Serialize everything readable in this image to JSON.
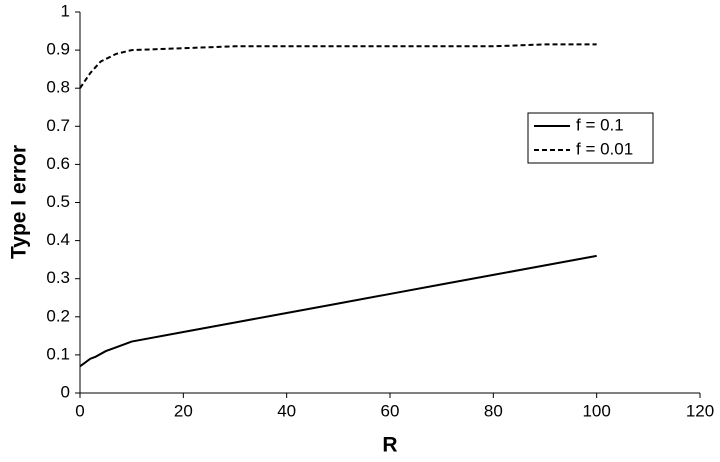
{
  "chart_data": {
    "type": "line",
    "x_label": "R",
    "y_label": "Type I error",
    "xlim": [
      0,
      120
    ],
    "xticks": [
      0,
      20,
      40,
      60,
      80,
      100,
      120
    ],
    "ylim": [
      0,
      1
    ],
    "yticks": [
      0,
      0.1,
      0.2,
      0.3,
      0.4,
      0.5,
      0.6,
      0.7,
      0.8,
      0.9,
      1
    ],
    "grid": false,
    "legend": "right",
    "series": [
      {
        "name": "f = 0.1",
        "color": "#000000",
        "dash": false,
        "x": [
          0,
          1,
          2,
          3,
          5,
          7,
          10,
          20,
          30,
          40,
          50,
          60,
          70,
          80,
          90,
          100
        ],
        "values": [
          0.07,
          0.08,
          0.09,
          0.095,
          0.11,
          0.12,
          0.135,
          0.16,
          0.185,
          0.21,
          0.235,
          0.26,
          0.285,
          0.31,
          0.335,
          0.36
        ]
      },
      {
        "name": "f = 0.01",
        "color": "#000000",
        "dash": true,
        "x": [
          0,
          2,
          4,
          7,
          10,
          20,
          30,
          40,
          50,
          60,
          70,
          80,
          90,
          100
        ],
        "values": [
          0.8,
          0.84,
          0.87,
          0.89,
          0.9,
          0.905,
          0.91,
          0.91,
          0.91,
          0.91,
          0.91,
          0.91,
          0.915,
          0.915
        ]
      }
    ]
  }
}
